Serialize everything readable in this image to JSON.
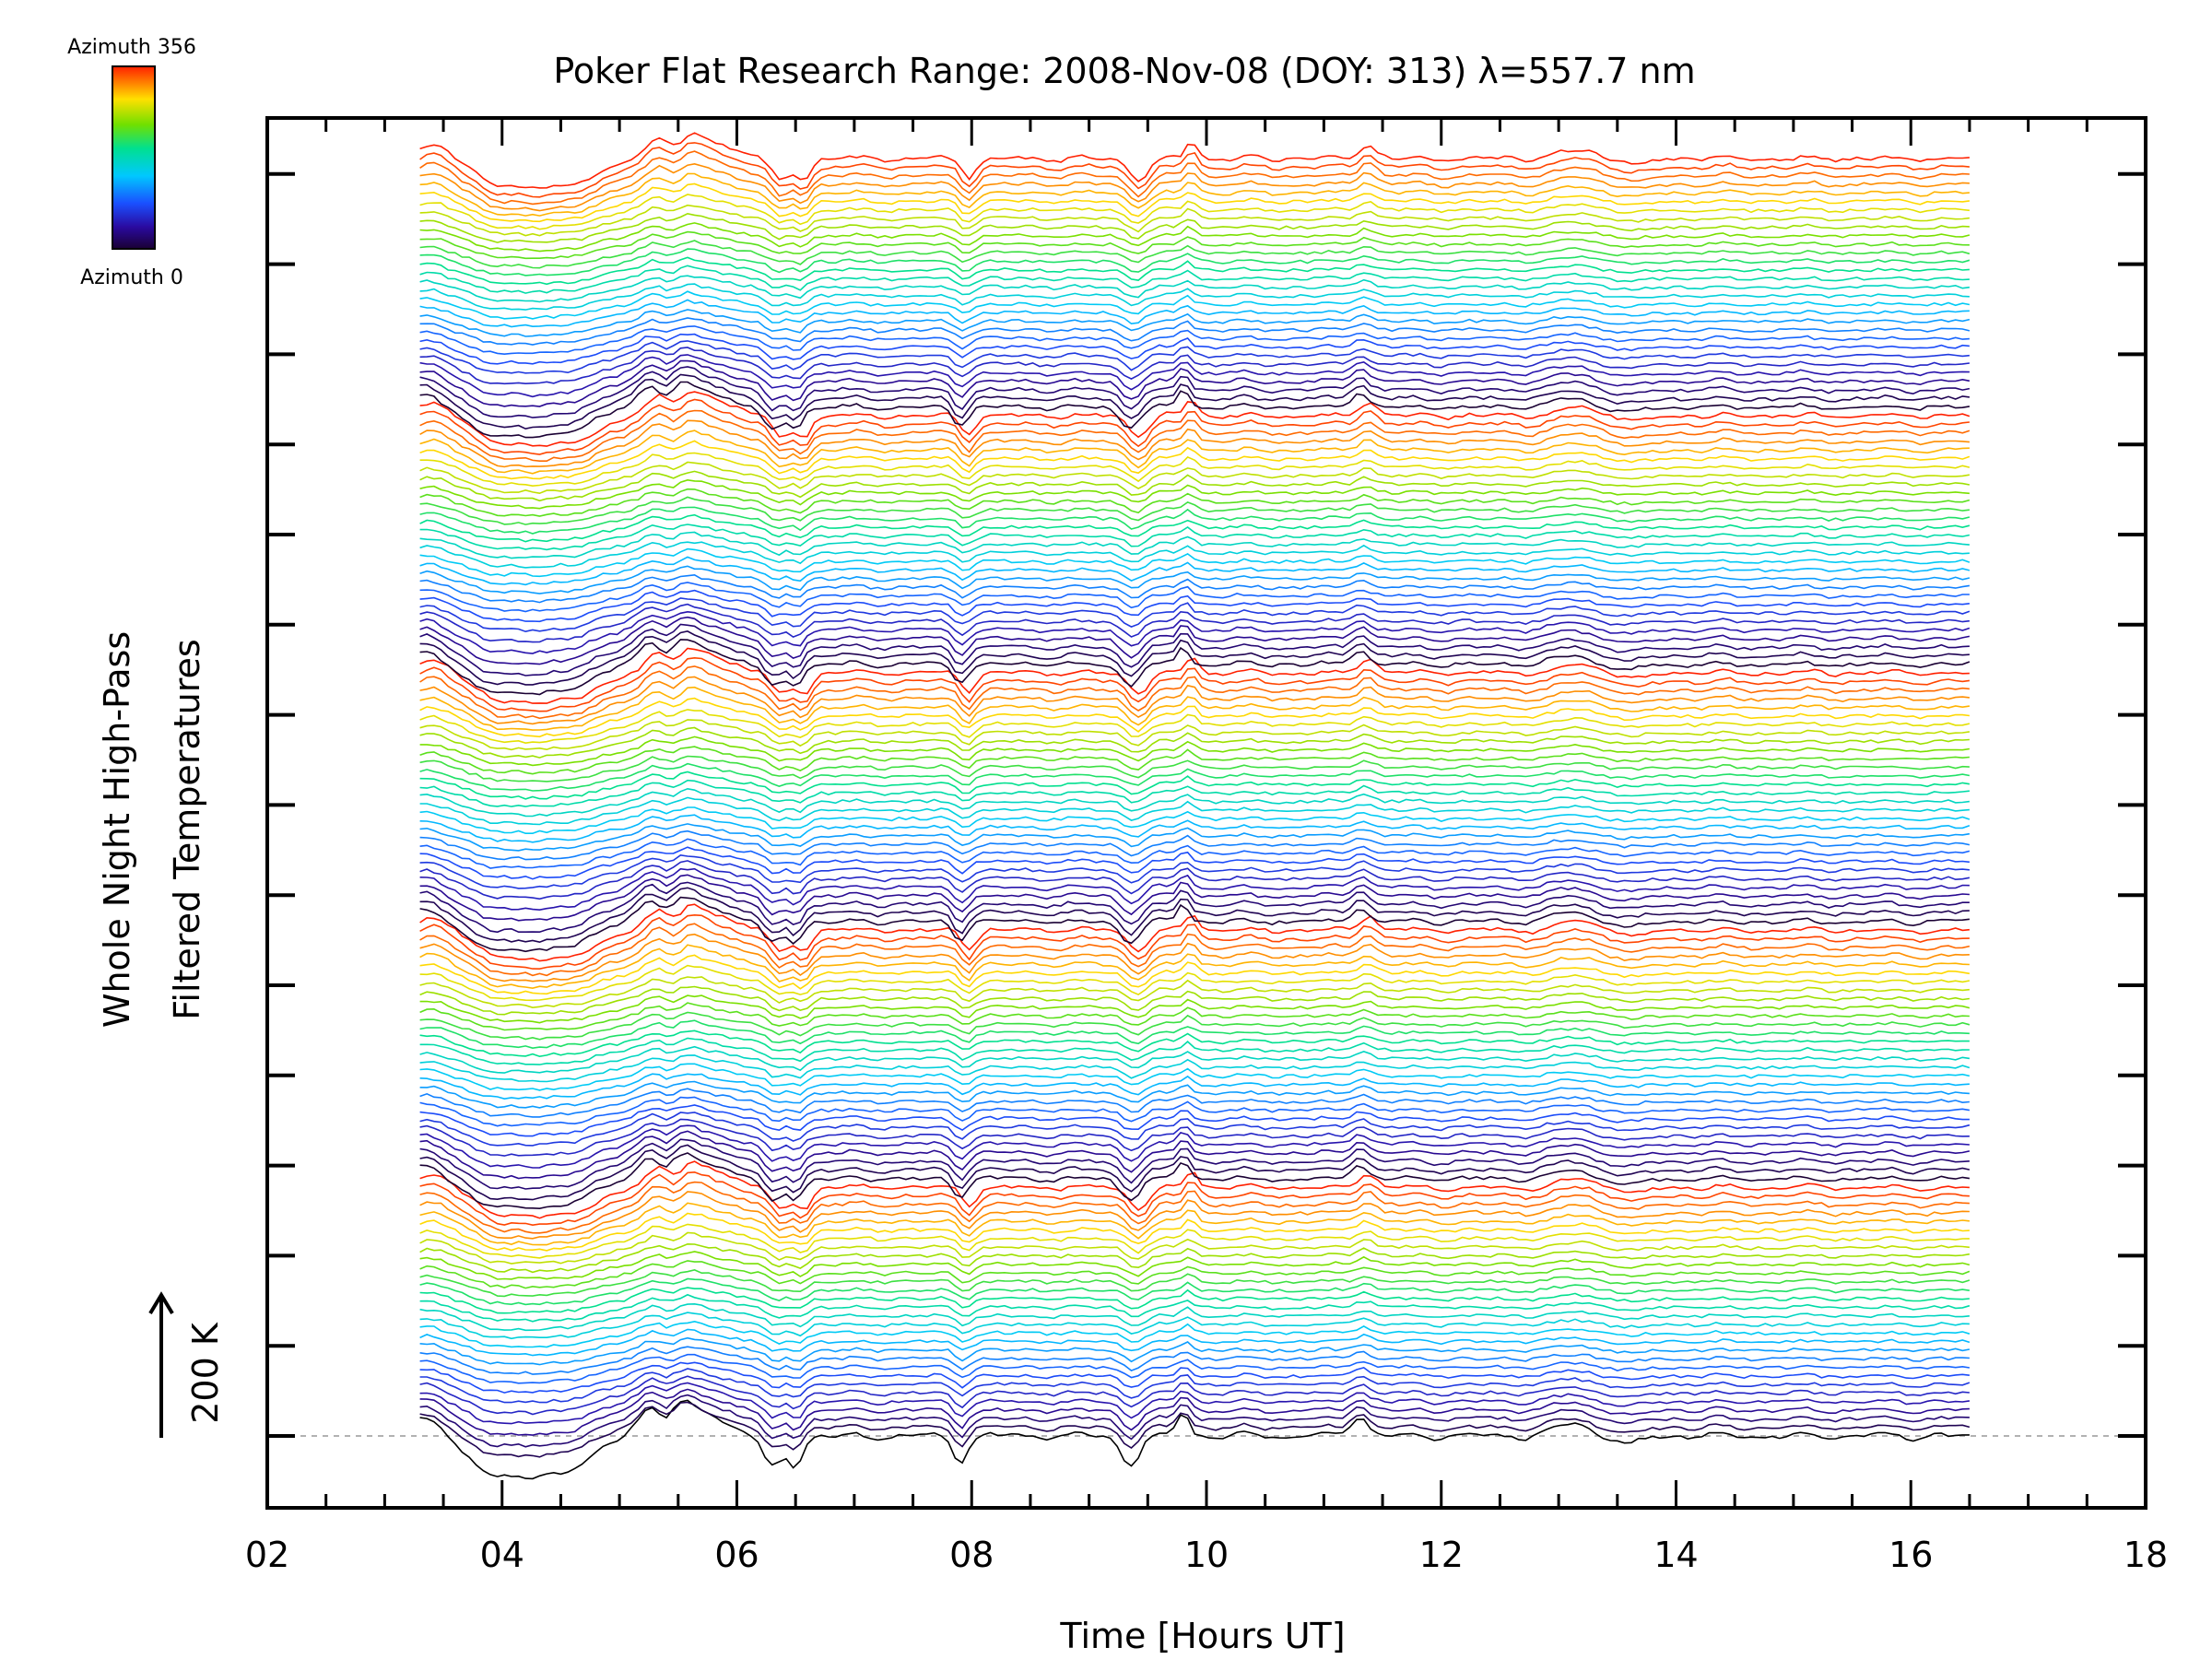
{
  "chart_data": {
    "type": "line",
    "title": "Poker Flat Research Range: 2008-Nov-08 (DOY: 313) λ=557.7 nm",
    "xlabel": "Time [Hours UT]",
    "ylabel": [
      "Whole Night High-Pass",
      "Filtered Temperatures"
    ],
    "xlim": [
      2,
      18
    ],
    "x_ticks": [
      "02",
      "04",
      "06",
      "08",
      "10",
      "12",
      "14",
      "16",
      "18"
    ],
    "x_ticks_values": [
      2,
      4,
      6,
      8,
      10,
      12,
      14,
      16,
      18
    ],
    "data_x_range": [
      3.3,
      16.5
    ],
    "scale_bar": {
      "label": "200 K",
      "value_K": 200
    },
    "colorbar": {
      "top_label": "Azimuth 356",
      "bottom_label": "Azimuth 0",
      "min": 0,
      "max": 356,
      "colormap": "rainbow"
    },
    "series_description": "Stacked temperature traces, one per azimuth, color-coded by azimuth; 5 azimuth sweeps stacked vertically",
    "n_sweeps": 5,
    "traces_per_sweep": 30,
    "features": [
      {
        "time": 5.5,
        "description": "positive bump"
      },
      {
        "time": 6.4,
        "description": "dip"
      },
      {
        "time": 7.9,
        "description": "dip"
      },
      {
        "time": 9.4,
        "description": "dip"
      },
      {
        "time": 9.8,
        "description": "spike"
      },
      {
        "time": 11.3,
        "description": "spike"
      },
      {
        "time": 13.1,
        "description": "bump"
      }
    ]
  }
}
